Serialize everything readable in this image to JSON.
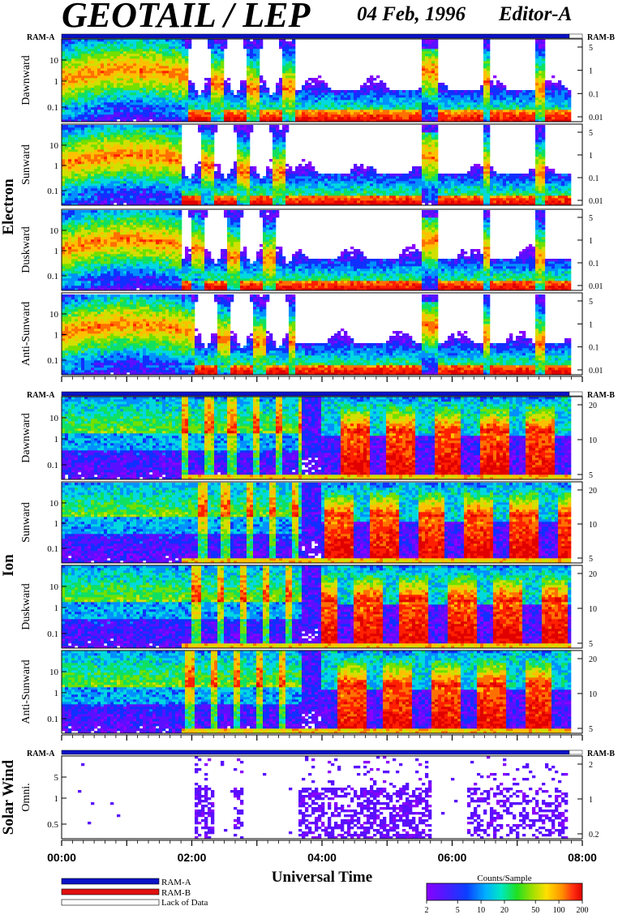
{
  "header": {
    "title": "GEOTAIL / LEP",
    "date": "04 Feb, 1996",
    "editor": "Editor-A"
  },
  "colors": {
    "ram_a": "#0a12c8",
    "ram_b": "#e01010",
    "lack_of_data": "#ffffff",
    "data_line": "#f0e020"
  },
  "groups": [
    {
      "name": "Electron",
      "ram_left": "RAM-A",
      "ram_right": "RAM-B",
      "ram_status": [
        {
          "start": "00:00",
          "end": "07:48",
          "state": "RAM-A"
        },
        {
          "start": "07:48",
          "end": "08:00",
          "state": "Lack of Data"
        }
      ],
      "panels": [
        {
          "label": "Dawnward",
          "left_ticks": [
            "10",
            "1",
            "0.1"
          ],
          "right_ticks": [
            "5",
            "1",
            "0.1",
            "0.01"
          ]
        },
        {
          "label": "Sunward",
          "left_ticks": [
            "10",
            "1",
            "0.1"
          ],
          "right_ticks": [
            "5",
            "1",
            "0.1",
            "0.01"
          ]
        },
        {
          "label": "Duskward",
          "left_ticks": [
            "10",
            "1",
            "0.1"
          ],
          "right_ticks": [
            "5",
            "1",
            "0.1",
            "0.01"
          ]
        },
        {
          "label": "Anti-Sunward",
          "left_ticks": [
            "10",
            "1",
            "0.1"
          ],
          "right_ticks": [
            "5",
            "1",
            "0.1",
            "0.01"
          ]
        }
      ]
    },
    {
      "name": "Ion",
      "ram_left": "RAM-A",
      "ram_right": "RAM-B",
      "ram_status": [
        {
          "start": "00:00",
          "end": "07:48",
          "state": "RAM-A"
        },
        {
          "start": "07:48",
          "end": "08:00",
          "state": "Lack of Data"
        }
      ],
      "panels": [
        {
          "label": "Dawnward",
          "left_ticks": [
            "10",
            "1",
            "0.1"
          ],
          "right_ticks": [
            "20",
            "10",
            "5"
          ]
        },
        {
          "label": "Sunward",
          "left_ticks": [
            "10",
            "1",
            "0.1"
          ],
          "right_ticks": [
            "20",
            "10",
            "5"
          ]
        },
        {
          "label": "Duskward",
          "left_ticks": [
            "10",
            "1",
            "0.1"
          ],
          "right_ticks": [
            "20",
            "10",
            "5"
          ]
        },
        {
          "label": "Anti-Sunward",
          "left_ticks": [
            "10",
            "1",
            "0.1"
          ],
          "right_ticks": [
            "20",
            "10",
            "5"
          ]
        }
      ]
    },
    {
      "name": "Solar Wind",
      "ram_left": "RAM-A",
      "ram_right": "RAM-B",
      "ram_status": [
        {
          "start": "00:00",
          "end": "07:48",
          "state": "RAM-A"
        },
        {
          "start": "07:48",
          "end": "08:00",
          "state": "Lack of Data"
        }
      ],
      "panels": [
        {
          "label": "Omni.",
          "left_ticks": [
            "5",
            "1",
            "0.5"
          ],
          "right_ticks": [
            "2",
            "1",
            "0.2"
          ]
        }
      ]
    }
  ],
  "xaxis": {
    "title": "Universal Time",
    "ticks": [
      "00:00",
      "02:00",
      "04:00",
      "06:00",
      "08:00"
    ]
  },
  "legend": {
    "items": [
      {
        "label": "RAM-A",
        "color": "#0a12c8"
      },
      {
        "label": "RAM-B",
        "color": "#e01010"
      },
      {
        "label": "Lack of Data",
        "color": "#ffffff"
      }
    ]
  },
  "colorbar": {
    "title": "Counts/Sample",
    "ticks": [
      "2",
      "5",
      "10",
      "20",
      "50",
      "100",
      "200"
    ],
    "tick_values": [
      2,
      5,
      10,
      20,
      50,
      100,
      200
    ],
    "range": [
      2,
      200
    ],
    "scale": "log"
  },
  "chart_data": {
    "type": "heatmap",
    "x_range": [
      "00:00",
      "08:00"
    ],
    "x_label": "Universal Time",
    "color_scale": "log",
    "color_range": [
      2,
      200
    ],
    "color_label": "Counts/Sample"
  }
}
